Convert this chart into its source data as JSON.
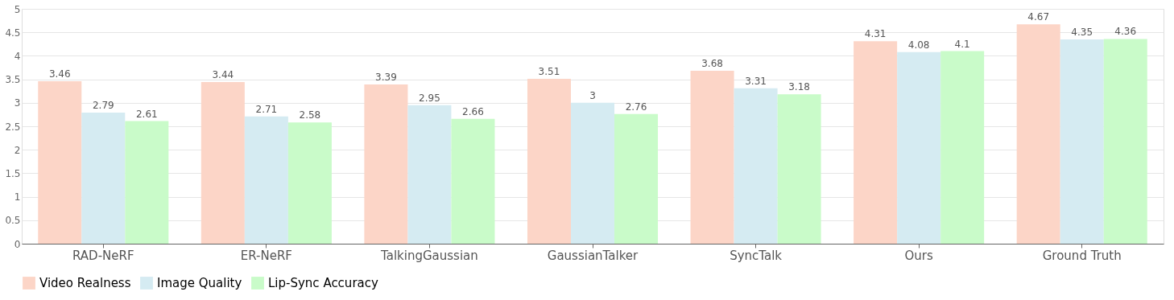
{
  "chart_data": {
    "type": "bar",
    "categories": [
      "RAD-NeRF",
      "ER-NeRF",
      "TalkingGaussian",
      "GaussianTalker",
      "SyncTalk",
      "Ours",
      "Ground Truth"
    ],
    "series": [
      {
        "name": "Video Realness",
        "color": "#fcd5c7",
        "values": [
          3.46,
          3.44,
          3.39,
          3.51,
          3.68,
          4.31,
          4.67
        ]
      },
      {
        "name": "Image Quality",
        "color": "#d5ebf2",
        "values": [
          2.79,
          2.71,
          2.95,
          3,
          3.31,
          4.08,
          4.35
        ]
      },
      {
        "name": "Lip-Sync Accuracy",
        "color": "#c9fbc9",
        "values": [
          2.61,
          2.58,
          2.66,
          2.76,
          3.18,
          4.1,
          4.36
        ]
      }
    ],
    "ylim": [
      0,
      5
    ],
    "yticks": [
      0,
      0.5,
      1,
      1.5,
      2,
      2.5,
      3,
      3.5,
      4,
      4.5,
      5
    ],
    "grid": "y",
    "legend": "bottom",
    "data_labels": true
  }
}
